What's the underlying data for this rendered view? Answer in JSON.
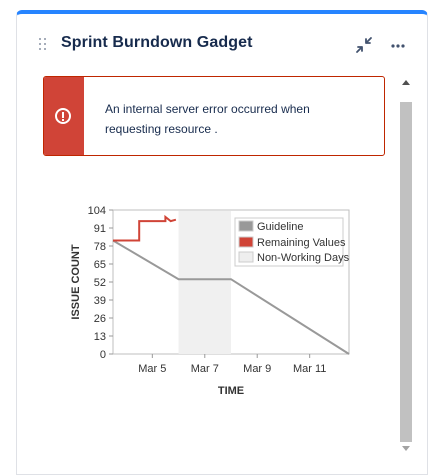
{
  "gadget": {
    "title": "Sprint Burndown Gadget",
    "accent_color": "#2684ff"
  },
  "icons": {
    "drag": "drag-handle-icon",
    "minimize": "minimize-icon",
    "more": "more-options-icon",
    "error": "error-icon"
  },
  "error": {
    "message": "An internal server error occurred when requesting resource .",
    "color": "#d04437"
  },
  "chart_data": {
    "type": "line",
    "xlabel": "TIME",
    "ylabel": "ISSUE COUNT",
    "ylim": [
      0,
      104
    ],
    "yticks": [
      "0",
      "13",
      "26",
      "39",
      "52",
      "65",
      "78",
      "91",
      "104"
    ],
    "xticks": [
      "Mar 5",
      "Mar 7",
      "Mar 9",
      "Mar 11"
    ],
    "grid": false,
    "legend_placement": "top-right",
    "legend": [
      "Guideline",
      "Remaining Values",
      "Non-Working Days"
    ],
    "non_working_days": [
      [
        "Mar 6",
        "Mar 8"
      ]
    ],
    "series": [
      {
        "name": "Guideline",
        "color": "#999999",
        "points": [
          [
            "Mar 3.5",
            82
          ],
          [
            "Mar 6",
            54
          ],
          [
            "Mar 8",
            54
          ],
          [
            "Mar 12.5",
            0
          ]
        ]
      },
      {
        "name": "Remaining Values",
        "color": "#d04437",
        "points": [
          [
            "Mar 3.5",
            82
          ],
          [
            "Mar 4.5",
            82
          ],
          [
            "Mar 4.5",
            96
          ],
          [
            "Mar 5.5",
            96
          ],
          [
            "Mar 5.5",
            99
          ],
          [
            "Mar 5.7",
            96
          ],
          [
            "Mar 5.9",
            97
          ]
        ]
      }
    ]
  }
}
